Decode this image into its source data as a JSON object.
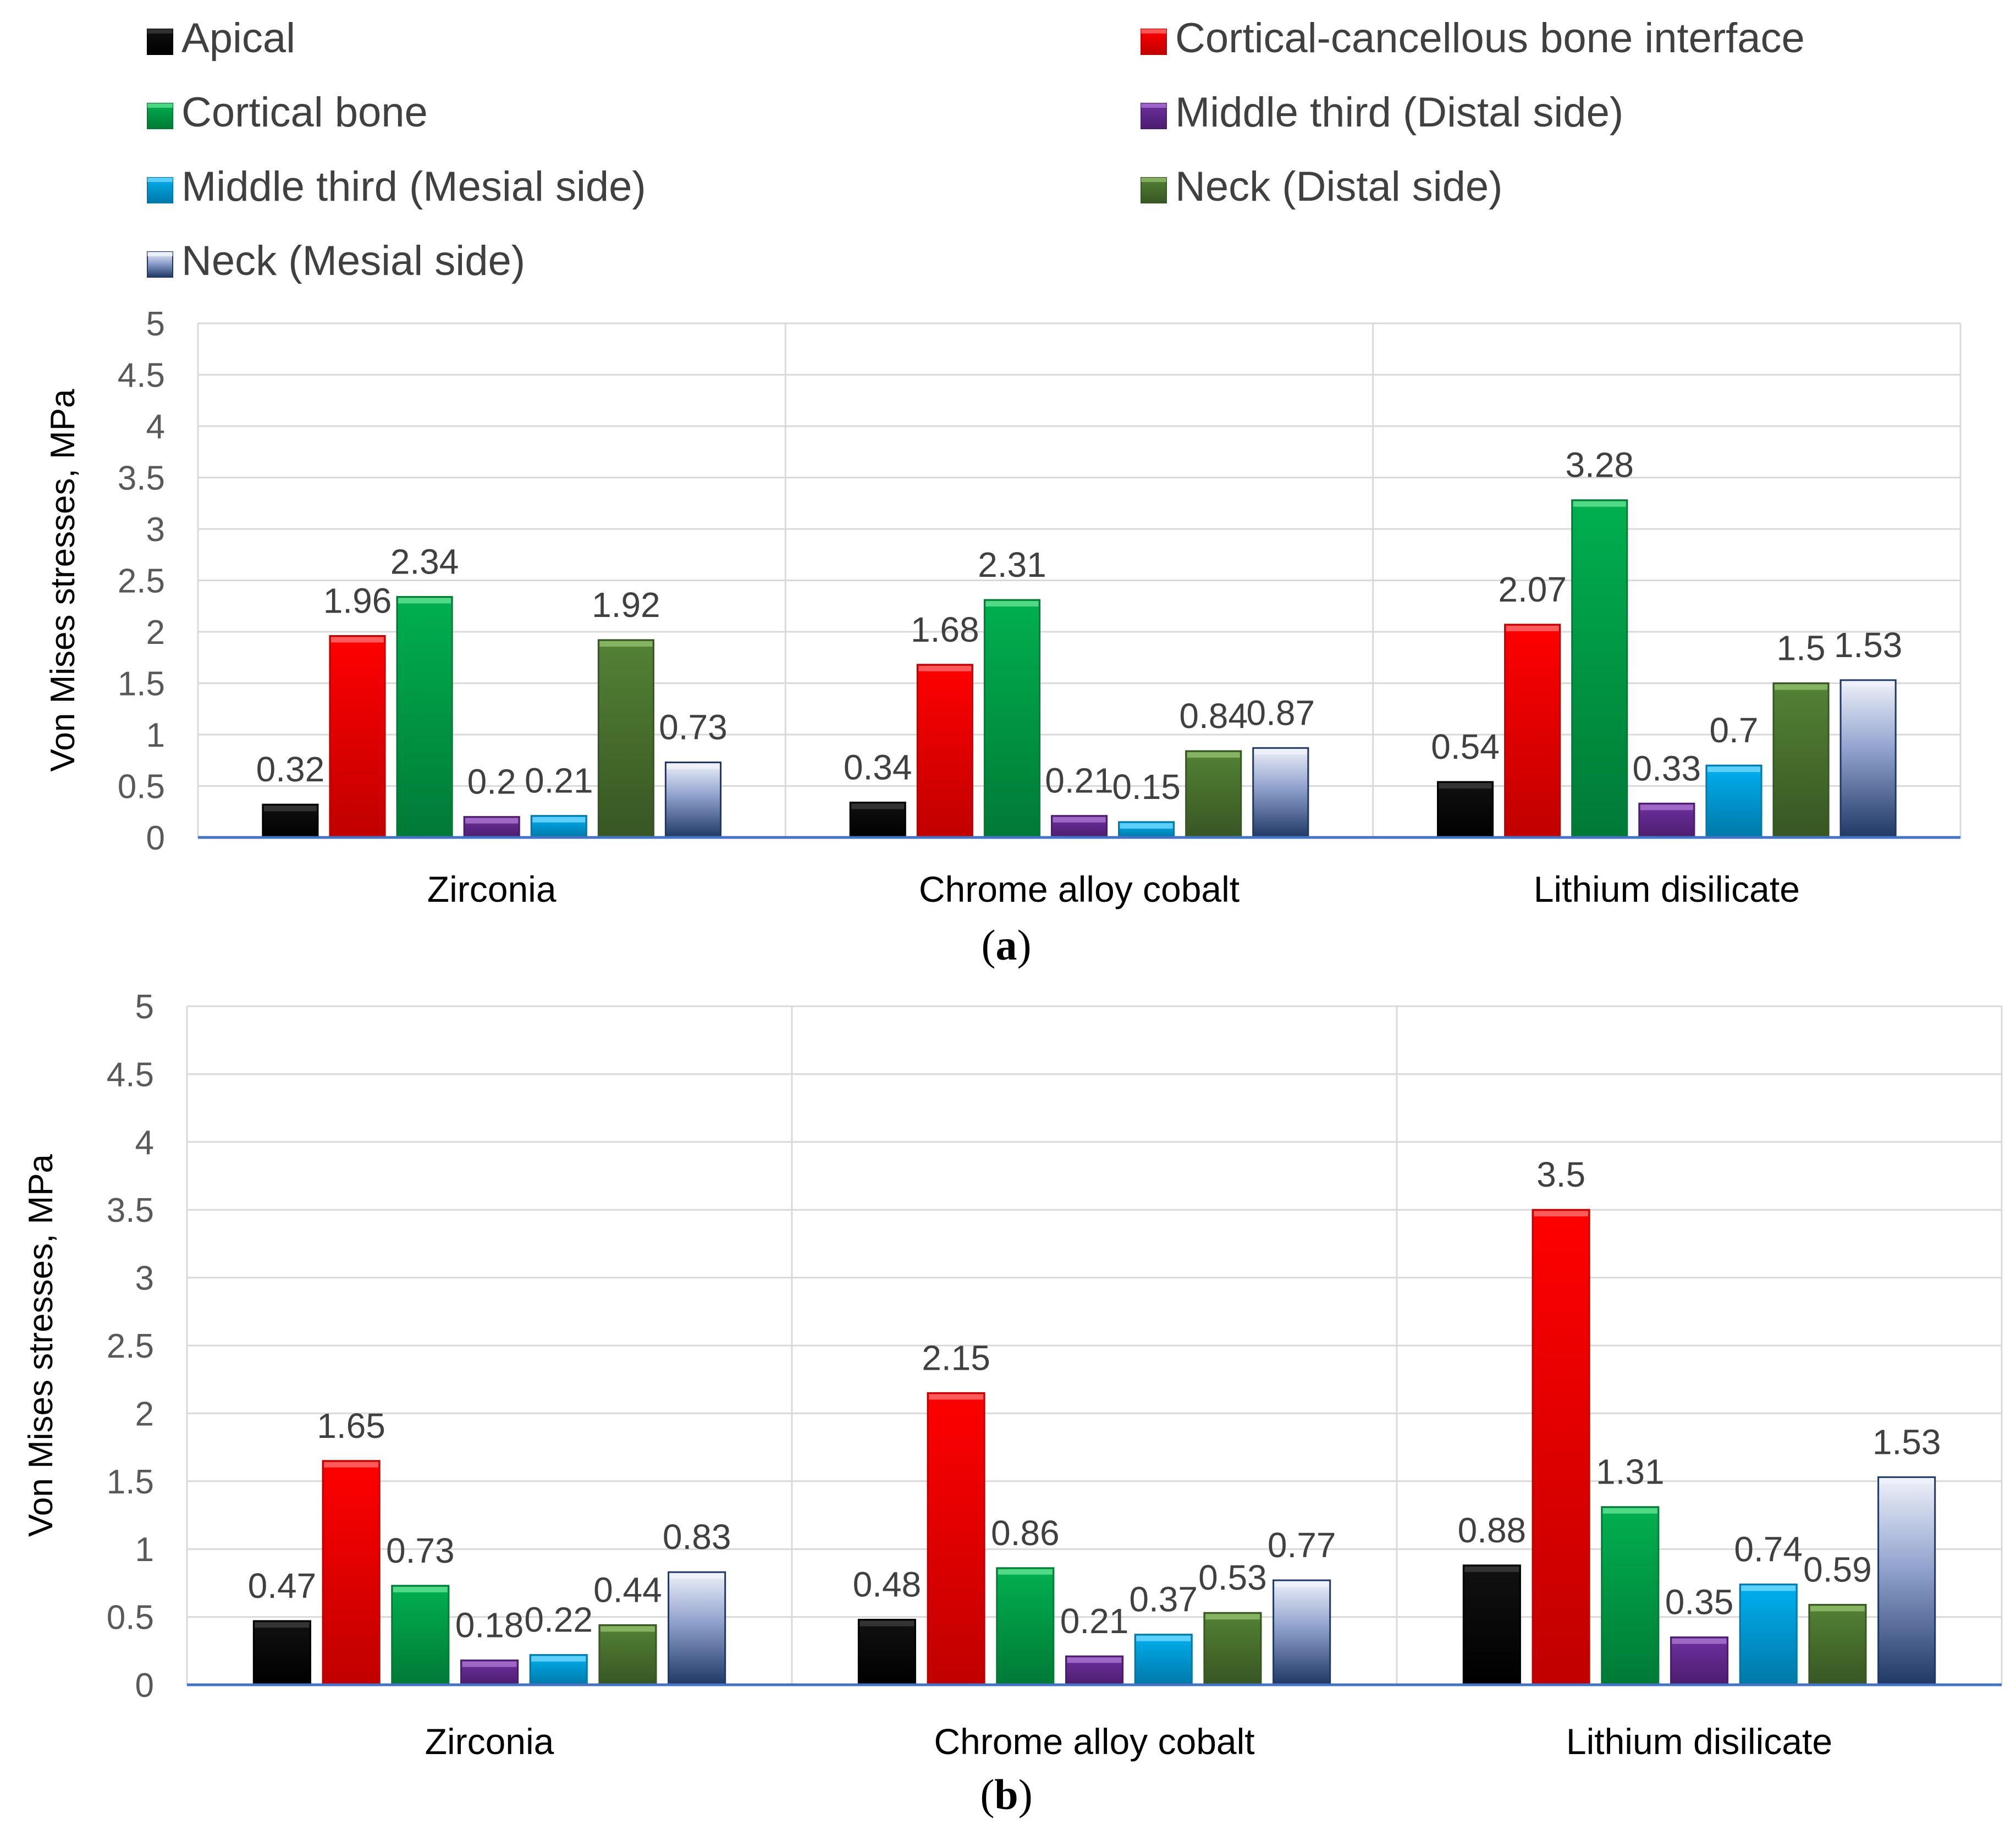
{
  "legend": {
    "entries": [
      {
        "name": "Apical",
        "color": "#111111",
        "top": "#3a3a3a",
        "dark": "#000000"
      },
      {
        "name": "Cortical-cancellous bone interface",
        "color": "#ff0000",
        "top": "#ff6b6b",
        "dark": "#c00000"
      },
      {
        "name": "Cortical bone",
        "color": "#00b050",
        "top": "#5fe08f",
        "dark": "#007a36"
      },
      {
        "name": "Middle third (Distal side)",
        "color": "#7030a0",
        "top": "#a872cf",
        "dark": "#4b1d6e"
      },
      {
        "name": "Middle third  (Mesial side)",
        "color": "#00b0f0",
        "top": "#6fd6ff",
        "dark": "#0078a8"
      },
      {
        "name": "Neck (Distal side)",
        "color": "#548235",
        "top": "#8fbc6a",
        "dark": "#375623"
      },
      {
        "name": "Neck (Mesial side)",
        "color": "#8ea0cc",
        "top": "#eef1f9",
        "dark": "#203864"
      }
    ]
  },
  "chart_data": [
    {
      "type": "bar",
      "panel_label": "a",
      "ylabel": "Von Mises stresses, MPa",
      "ylim": [
        0,
        5
      ],
      "yticks": [
        "0",
        "0.5",
        "1",
        "1.5",
        "2",
        "2.5",
        "3",
        "3.5",
        "4",
        "4.5",
        "5"
      ],
      "categories": [
        "Zirconia",
        "Chrome alloy cobalt",
        "Lithium disilicate"
      ],
      "series": [
        {
          "name": "Apical",
          "values": [
            0.32,
            0.34,
            0.54
          ],
          "labels": [
            "0.32",
            "0.34",
            "0.54"
          ]
        },
        {
          "name": "Cortical-cancellous bone interface",
          "values": [
            1.96,
            1.68,
            2.07
          ],
          "labels": [
            "1.96",
            "1.68",
            "2.07"
          ]
        },
        {
          "name": "Cortical bone",
          "values": [
            2.34,
            2.31,
            3.28
          ],
          "labels": [
            "2.34",
            "2.31",
            "3.28"
          ]
        },
        {
          "name": "Middle third (Distal side)",
          "values": [
            0.2,
            0.21,
            0.33
          ],
          "labels": [
            "0.2",
            "0.21",
            "0.33"
          ]
        },
        {
          "name": "Middle third  (Mesial side)",
          "values": [
            0.21,
            0.15,
            0.7
          ],
          "labels": [
            "0.21",
            "0.15",
            "0.7"
          ]
        },
        {
          "name": "Neck (Distal side)",
          "values": [
            1.92,
            0.84,
            1.5
          ],
          "labels": [
            "1.92",
            "0.84",
            "1.5"
          ]
        },
        {
          "name": "Neck (Mesial side)",
          "values": [
            0.73,
            0.87,
            1.53
          ],
          "labels": [
            "0.73",
            "0.87",
            "1.53"
          ]
        }
      ]
    },
    {
      "type": "bar",
      "panel_label": "b",
      "ylabel": "Von Mises stresses, MPa",
      "ylim": [
        0,
        5
      ],
      "yticks": [
        "0",
        "0.5",
        "1",
        "1.5",
        "2",
        "2.5",
        "3",
        "3.5",
        "4",
        "4.5",
        "5"
      ],
      "categories": [
        "Zirconia",
        "Chrome alloy cobalt",
        "Lithium disilicate"
      ],
      "series": [
        {
          "name": "Apical",
          "values": [
            0.47,
            0.48,
            0.88
          ],
          "labels": [
            "0.47",
            "0.48",
            "0.88"
          ]
        },
        {
          "name": "Cortical-cancellous bone interface",
          "values": [
            1.65,
            2.15,
            3.5
          ],
          "labels": [
            "1.65",
            "2.15",
            "3.5"
          ]
        },
        {
          "name": "Cortical bone",
          "values": [
            0.73,
            0.86,
            1.31
          ],
          "labels": [
            "0.73",
            "0.86",
            "1.31"
          ]
        },
        {
          "name": "Middle third (Distal side)",
          "values": [
            0.18,
            0.21,
            0.35
          ],
          "labels": [
            "0.18",
            "0.21",
            "0.35"
          ]
        },
        {
          "name": "Middle third  (Mesial side)",
          "values": [
            0.22,
            0.37,
            0.74
          ],
          "labels": [
            "0.22",
            "0.37",
            "0.74"
          ]
        },
        {
          "name": "Neck (Distal side)",
          "values": [
            0.44,
            0.53,
            0.59
          ],
          "labels": [
            "0.44",
            "0.53",
            "0.59"
          ]
        },
        {
          "name": "Neck (Mesial side)",
          "values": [
            0.83,
            0.77,
            1.53
          ],
          "labels": [
            "0.83",
            "0.77",
            "1.53"
          ]
        }
      ]
    }
  ]
}
